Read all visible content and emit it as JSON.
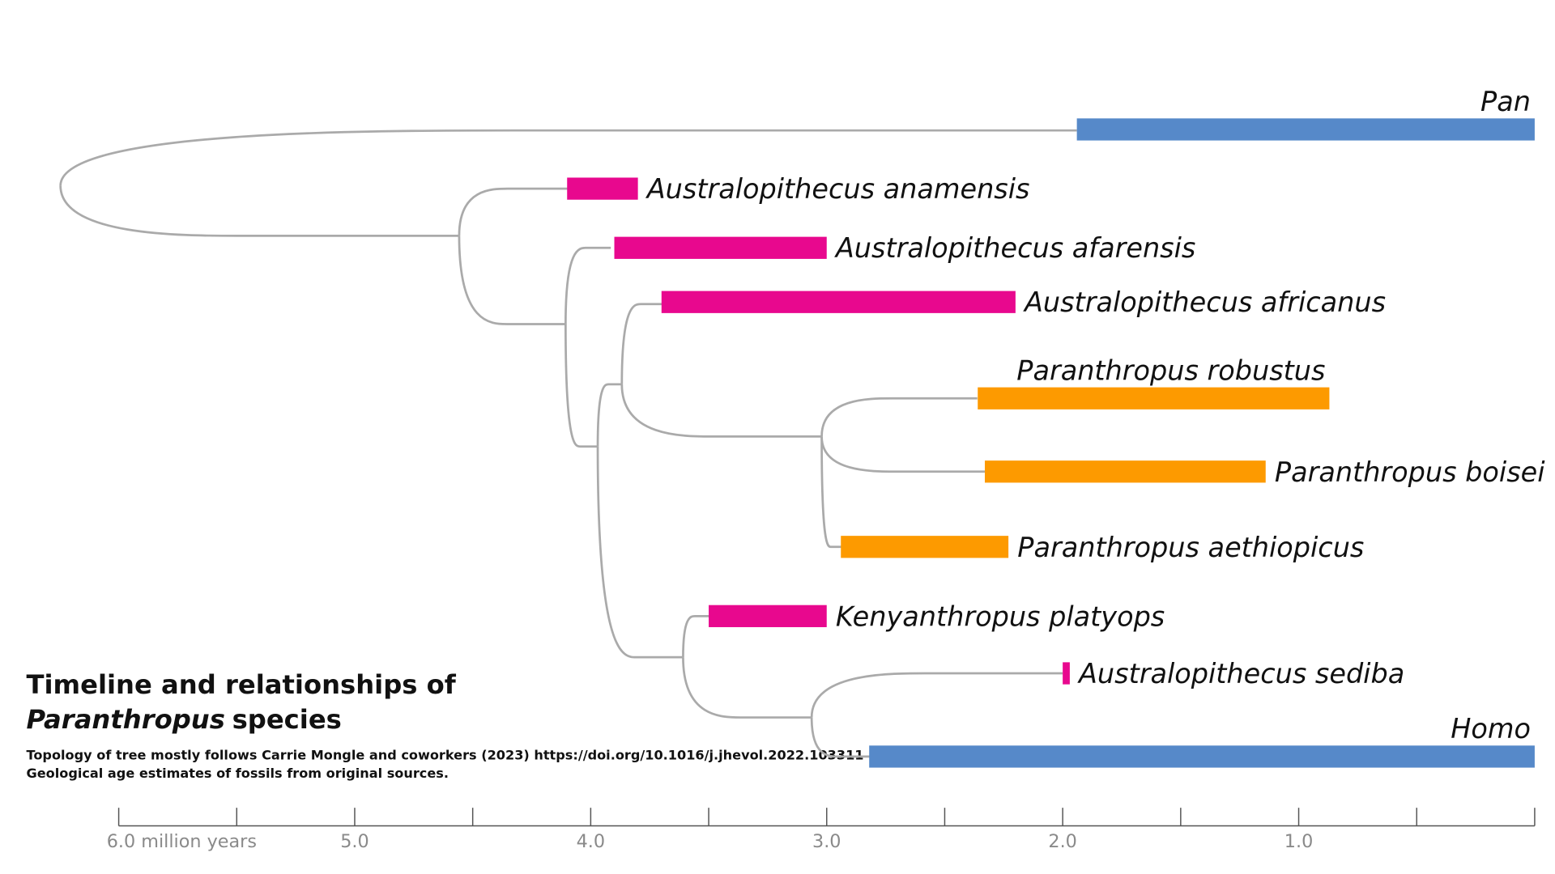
{
  "chart_data": {
    "type": "timeline",
    "title": {
      "line1": "Timeline and relationships of",
      "genus": "Paranthropus",
      "rest": "species"
    },
    "notes": [
      "Topology of tree mostly follows Carrie Mongle and coworkers (2023) https://doi.org/10.1016/j.jhevol.2022.103311",
      "Geological age estimates of fossils from original sources."
    ],
    "categories": [
      "Pan",
      "Australopithecus anamensis",
      "Australopithecus afarensis",
      "Australopithecus africanus",
      "Paranthropus robustus",
      "Paranthropus boisei",
      "Paranthropus aethiopicus",
      "Kenyanthropus platyops",
      "Australopithecus sediba",
      "Homo"
    ],
    "values": [
      [
        1.94,
        0
      ],
      [
        4.1,
        3.8
      ],
      [
        3.9,
        3.0
      ],
      [
        3.7,
        2.2
      ],
      [
        2.36,
        0.87
      ],
      [
        2.33,
        1.14
      ],
      [
        2.94,
        2.23
      ],
      [
        3.5,
        3.0
      ],
      [
        2.0,
        1.97
      ],
      [
        2.82,
        0
      ]
    ],
    "colors": [
      "#5689c9",
      "#e8088e",
      "#e8088e",
      "#e8088e",
      "#fd9a00",
      "#fd9a00",
      "#fd9a00",
      "#e8088e",
      "#e8088e",
      "#5689c9"
    ],
    "xlim": [
      6,
      0
    ],
    "xticks": [
      {
        "value": 6,
        "label": "6.0 million years"
      },
      {
        "value": 5,
        "label": "5.0"
      },
      {
        "value": 4,
        "label": "4.0"
      },
      {
        "value": 3,
        "label": "3.0"
      },
      {
        "value": 2,
        "label": "2.0"
      },
      {
        "value": 1,
        "label": "1.0"
      }
    ],
    "xminor_ticks": [
      5.5,
      4.5,
      3.5,
      2.5,
      1.5,
      0.5,
      0
    ]
  }
}
